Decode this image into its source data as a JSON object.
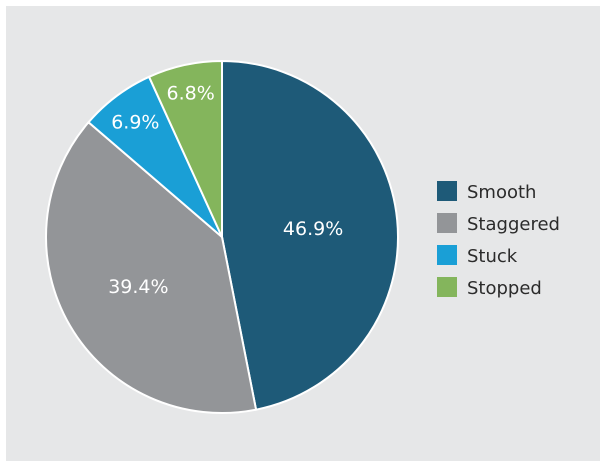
{
  "chart_data": {
    "type": "pie",
    "slices": [
      {
        "label": "Smooth",
        "value": 46.9,
        "display": "46.9%",
        "color": "#1e5a78"
      },
      {
        "label": "Staggered",
        "value": 39.4,
        "display": "39.4%",
        "color": "#939598"
      },
      {
        "label": "Stuck",
        "value": 6.9,
        "display": "6.9%",
        "color": "#1a9fd6"
      },
      {
        "label": "Stopped",
        "value": 6.8,
        "display": "6.8%",
        "color": "#84b55c"
      }
    ],
    "start": "12 o'clock",
    "direction": "clockwise",
    "legend_position": "right"
  }
}
